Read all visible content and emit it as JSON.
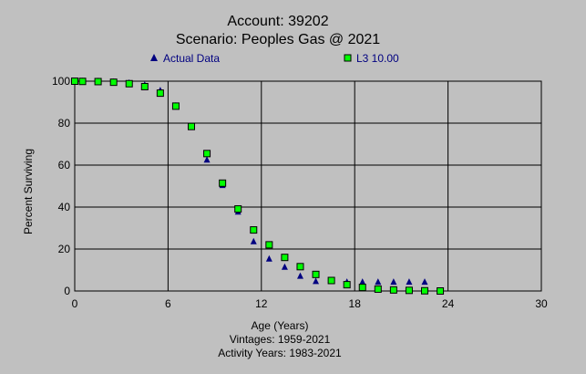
{
  "chart_data": {
    "type": "scatter",
    "title": "Account: 39202",
    "subtitle": "Scenario: Peoples Gas @ 2021",
    "xlabel": "Age (Years)",
    "ylabel": "Percent Surviving",
    "xlim": [
      0,
      30
    ],
    "ylim": [
      0,
      100
    ],
    "xticks": [
      "0",
      "6",
      "12",
      "18",
      "24",
      "30"
    ],
    "yticks": [
      "0",
      "20",
      "40",
      "60",
      "80",
      "100"
    ],
    "grid": true,
    "legend_position": "top",
    "footer": [
      "Vintages: 1959-2021",
      "Activity Years: 1983-2021"
    ],
    "series": [
      {
        "name": "Actual Data",
        "marker": "triangle",
        "color": "#000080",
        "x": [
          0,
          0.5,
          1.5,
          2.5,
          3.5,
          4.5,
          5.5,
          6.5,
          7.5,
          8.5,
          9.5,
          10.5,
          11.5,
          12.5,
          13.5,
          14.5,
          15.5,
          16.5,
          17.5,
          18.5,
          19.5,
          20.5,
          21.5,
          22.5
        ],
        "y": [
          100,
          100,
          100,
          99.7,
          99.2,
          98.2,
          95.6,
          88.3,
          78.2,
          62.5,
          50.4,
          37.7,
          23.6,
          15.3,
          11.4,
          7.1,
          4.6,
          4.6,
          4.3,
          4.3,
          4.3,
          4.3,
          4.3,
          4.3
        ]
      },
      {
        "name": "L3 10.00",
        "marker": "square",
        "color": "#00ff00",
        "x": [
          0,
          0.5,
          1.5,
          2.5,
          3.5,
          4.5,
          5.5,
          6.5,
          7.5,
          8.5,
          9.5,
          10.5,
          11.5,
          12.5,
          13.5,
          14.5,
          15.5,
          16.5,
          17.5,
          18.5,
          19.5,
          20.5,
          21.5,
          22.5,
          23.5
        ],
        "y": [
          100,
          99.9,
          99.8,
          99.5,
          98.8,
          97.4,
          94.3,
          88.1,
          78.4,
          65.5,
          51.4,
          39.1,
          29.1,
          22.0,
          16.0,
          11.6,
          7.9,
          5.0,
          3.0,
          1.7,
          0.9,
          0.5,
          0.3,
          0.1,
          0.0
        ]
      }
    ]
  }
}
